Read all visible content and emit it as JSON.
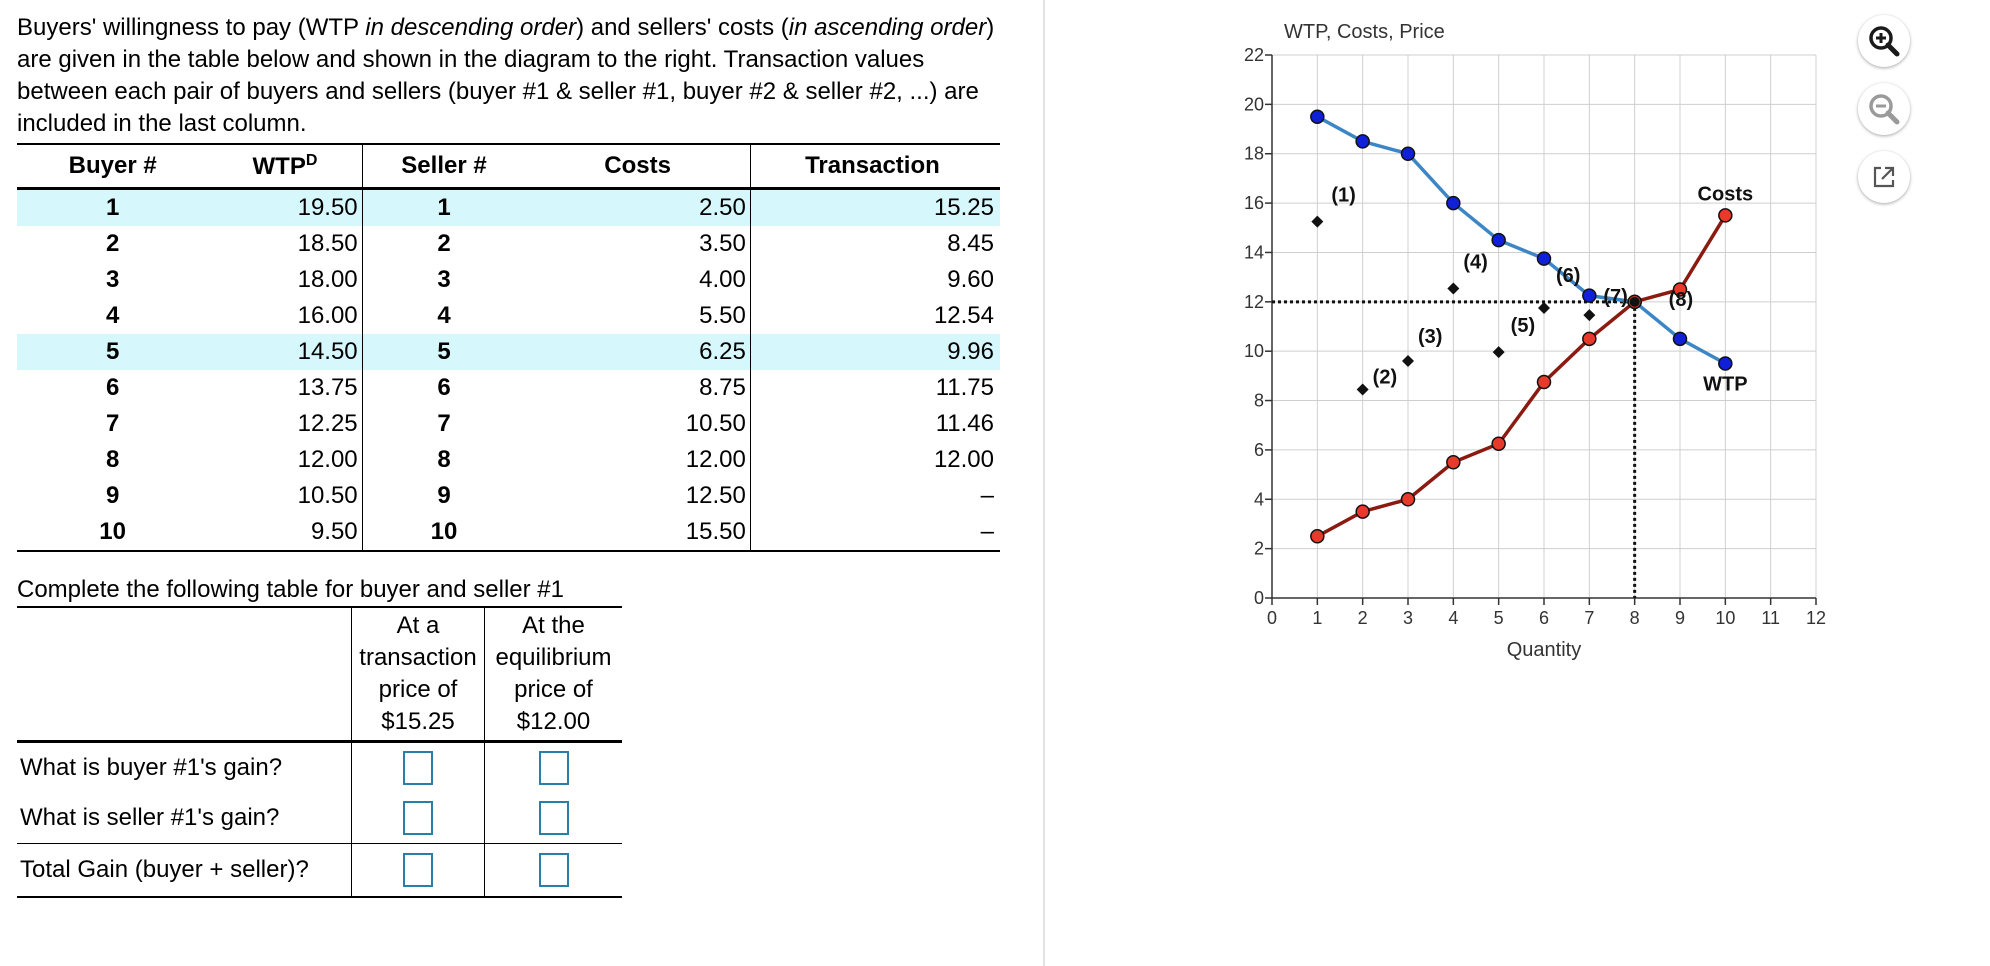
{
  "intro": {
    "p1": "Buyers' willingness to pay (WTP ",
    "p1_em": "in descending order",
    "p2": ") and sellers' costs (",
    "p2_em": "in ascending order",
    "p3": ") are given in the table below and shown in the diagram to the right. Transaction values between each pair of buyers and sellers (buyer #1 & seller #1, buyer #2 & seller #2, ...) are included in the last column."
  },
  "main_table": {
    "headers": {
      "buyer": "Buyer #",
      "wtp": "WTP",
      "wtp_sup": "D",
      "seller": "Seller #",
      "costs": "Costs",
      "transaction": "Transaction"
    },
    "rows": [
      {
        "buyer": "1",
        "wtp": "19.50",
        "seller": "1",
        "cost": "2.50",
        "transaction": "15.25"
      },
      {
        "buyer": "2",
        "wtp": "18.50",
        "seller": "2",
        "cost": "3.50",
        "transaction": "8.45"
      },
      {
        "buyer": "3",
        "wtp": "18.00",
        "seller": "3",
        "cost": "4.00",
        "transaction": "9.60"
      },
      {
        "buyer": "4",
        "wtp": "16.00",
        "seller": "4",
        "cost": "5.50",
        "transaction": "12.54"
      },
      {
        "buyer": "5",
        "wtp": "14.50",
        "seller": "5",
        "cost": "6.25",
        "transaction": "9.96"
      },
      {
        "buyer": "6",
        "wtp": "13.75",
        "seller": "6",
        "cost": "8.75",
        "transaction": "11.75"
      },
      {
        "buyer": "7",
        "wtp": "12.25",
        "seller": "7",
        "cost": "10.50",
        "transaction": "11.46"
      },
      {
        "buyer": "8",
        "wtp": "12.00",
        "seller": "8",
        "cost": "12.00",
        "transaction": "12.00"
      },
      {
        "buyer": "9",
        "wtp": "10.50",
        "seller": "9",
        "cost": "12.50",
        "transaction": "–"
      },
      {
        "buyer": "10",
        "wtp": "9.50",
        "seller": "10",
        "cost": "15.50",
        "transaction": "–"
      }
    ],
    "highlight_color": "#d6f7fb"
  },
  "question": {
    "title": "Complete the following table for buyer and seller #1",
    "col1_lines": [
      "At a",
      "transaction",
      "price of",
      "$15.25"
    ],
    "col2_lines": [
      "At the",
      "equilibrium",
      "price of",
      "$12.00"
    ],
    "rows": [
      "What is buyer #1's gain?",
      "What is seller #1's gain?",
      "Total Gain (buyer + seller)?"
    ]
  },
  "chart_data": {
    "type": "line",
    "ylabel": "WTP, Costs, Price",
    "xlabel": "Quantity",
    "xlim": [
      0,
      12
    ],
    "ylim": [
      0,
      22
    ],
    "x_ticks": [
      "0",
      "1",
      "2",
      "3",
      "4",
      "5",
      "6",
      "7",
      "8",
      "9",
      "10",
      "11",
      "12"
    ],
    "y_ticks": [
      "0",
      "2",
      "4",
      "6",
      "8",
      "10",
      "12",
      "14",
      "16",
      "18",
      "20",
      "22"
    ],
    "grid": true,
    "series": [
      {
        "name": "WTP",
        "color": "#3d86c6",
        "marker_color": "#1020d8",
        "x": [
          1,
          2,
          3,
          4,
          5,
          6,
          7,
          8,
          9,
          10
        ],
        "y": [
          19.5,
          18.5,
          18.0,
          16.0,
          14.5,
          13.75,
          12.25,
          12.0,
          10.5,
          9.5
        ]
      },
      {
        "name": "Costs",
        "color": "#8b1a10",
        "marker_color": "#e83a2a",
        "x": [
          1,
          2,
          3,
          4,
          5,
          6,
          7,
          8,
          9,
          10
        ],
        "y": [
          2.5,
          3.5,
          4.0,
          5.5,
          6.25,
          8.75,
          10.5,
          12.0,
          12.5,
          15.5
        ]
      }
    ],
    "transactions": [
      {
        "label": "(1)",
        "x": 1,
        "y": 15.25
      },
      {
        "label": "(2)",
        "x": 2,
        "y": 8.45
      },
      {
        "label": "(3)",
        "x": 3,
        "y": 9.6
      },
      {
        "label": "(4)",
        "x": 4,
        "y": 12.54
      },
      {
        "label": "(5)",
        "x": 5,
        "y": 9.96
      },
      {
        "label": "(6)",
        "x": 6,
        "y": 11.75
      },
      {
        "label": "(7)",
        "x": 7,
        "y": 11.46
      },
      {
        "label": "(8)",
        "x": 8,
        "y": 12.0
      }
    ],
    "equilibrium": {
      "x": 8,
      "y": 12
    },
    "annotations": {
      "costs": "Costs",
      "wtp": "WTP"
    }
  },
  "tools": {
    "zoom_in": "zoom-in-icon",
    "zoom_out": "zoom-out-icon",
    "popout": "popout-icon"
  }
}
